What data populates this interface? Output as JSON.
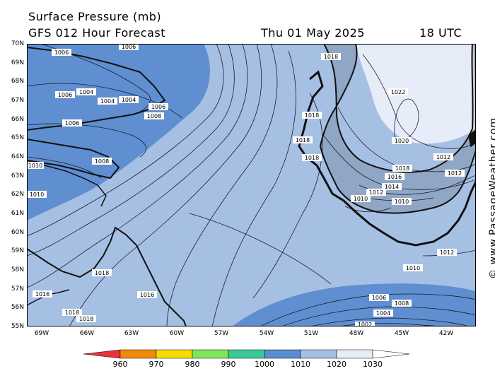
{
  "header": {
    "title": "Surface Pressure (mb)",
    "subtitle": "GFS 012 Hour Forecast",
    "date": "Thu 01 May 2025",
    "time": "18 UTC"
  },
  "credit": "© www.PassageWeather.com",
  "axes": {
    "lat_labels": [
      "70N",
      "69N",
      "68N",
      "67N",
      "66N",
      "65N",
      "64N",
      "63N",
      "62N",
      "61N",
      "60N",
      "59N",
      "58N",
      "57N",
      "56N",
      "55N"
    ],
    "lon_labels": [
      "69W",
      "66W",
      "63W",
      "60W",
      "57W",
      "54W",
      "51W",
      "48W",
      "45W",
      "42W"
    ]
  },
  "colorbar": {
    "labels": [
      "960",
      "970",
      "980",
      "990",
      "1000",
      "1010",
      "1020",
      "1030"
    ],
    "colors": [
      "#e8323c",
      "#f08a0a",
      "#f5dc00",
      "#7ee65a",
      "#3cc896",
      "#5a8cd2",
      "#a6c0e4",
      "#e6edf8",
      "#ffffff"
    ]
  },
  "map": {
    "colors": {
      "low": "#5f8fd0",
      "mid": "#a6c0e4",
      "high": "#e6edf8",
      "land": "#111111",
      "contour": "#1a1a2e"
    },
    "isobar_labels": [
      {
        "text": "1006"
      },
      {
        "text": "1006"
      },
      {
        "text": "1018"
      },
      {
        "text": "1004"
      },
      {
        "text": "1006"
      },
      {
        "text": "1004"
      },
      {
        "text": "1004"
      },
      {
        "text": "1006"
      },
      {
        "text": "1008"
      },
      {
        "text": "1006"
      },
      {
        "text": "1018"
      },
      {
        "text": "1022"
      },
      {
        "text": "1018"
      },
      {
        "text": "1020"
      },
      {
        "text": "1008"
      },
      {
        "text": "1010"
      },
      {
        "text": "1018"
      },
      {
        "text": "1012"
      },
      {
        "text": "1018"
      },
      {
        "text": "1012"
      },
      {
        "text": "1016"
      },
      {
        "text": "1014"
      },
      {
        "text": "1012"
      },
      {
        "text": "1010"
      },
      {
        "text": "1010"
      },
      {
        "text": "1012"
      },
      {
        "text": "1018"
      },
      {
        "text": "1010"
      },
      {
        "text": "1016"
      },
      {
        "text": "1016"
      },
      {
        "text": "1008"
      },
      {
        "text": "1018"
      },
      {
        "text": "1018"
      },
      {
        "text": "1006"
      },
      {
        "text": "1004"
      },
      {
        "text": "1002"
      },
      {
        "text": "1010"
      }
    ]
  }
}
